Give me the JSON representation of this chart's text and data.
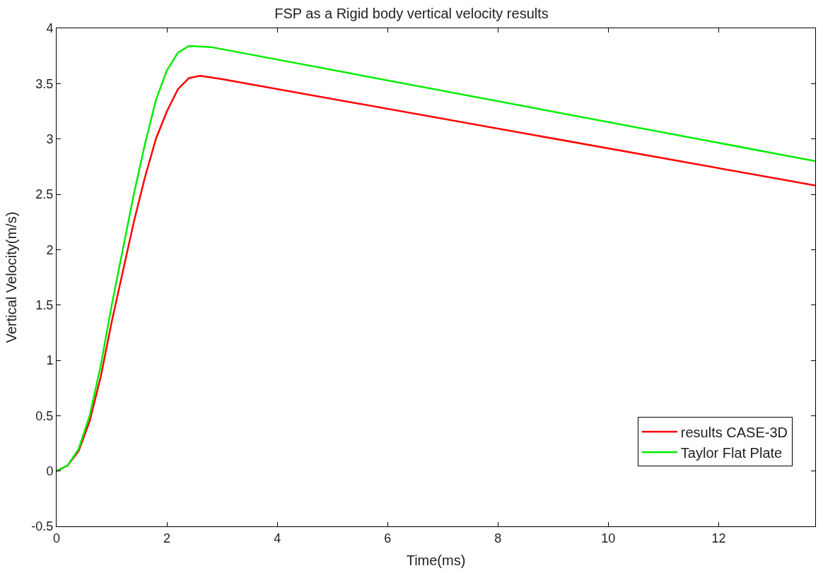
{
  "chart_data": {
    "type": "line",
    "title": "FSP as a Rigid body vertical velocity results",
    "xlabel": "Time(ms)",
    "ylabel": "Vertical Velocity(m/s)",
    "xlim": [
      0,
      13.75
    ],
    "xticks": [
      0,
      2,
      4,
      6,
      8,
      10,
      12
    ],
    "ylim": [
      -0.5,
      4
    ],
    "yticks": [
      -0.5,
      0,
      0.5,
      1,
      1.5,
      2,
      2.5,
      3,
      3.5,
      4
    ],
    "legend": "bottom right",
    "marker": "none",
    "line_style": "solid",
    "series": [
      {
        "name": "results CASE-3D",
        "color": "#ff0000",
        "x": [
          0,
          0.2,
          0.4,
          0.6,
          0.8,
          1.0,
          1.2,
          1.4,
          1.6,
          1.8,
          2.0,
          2.2,
          2.4,
          2.6,
          3.0,
          13.75
        ],
        "values": [
          0,
          0.05,
          0.18,
          0.45,
          0.85,
          1.35,
          1.8,
          2.25,
          2.65,
          3.0,
          3.25,
          3.45,
          3.55,
          3.57,
          3.54,
          2.58
        ]
      },
      {
        "name": "Taylor Flat Plate",
        "color": "#00ee00",
        "x": [
          0,
          0.2,
          0.4,
          0.6,
          0.8,
          1.0,
          1.2,
          1.4,
          1.6,
          1.8,
          2.0,
          2.2,
          2.4,
          2.8,
          13.75
        ],
        "values": [
          0,
          0.05,
          0.2,
          0.5,
          0.95,
          1.5,
          2.0,
          2.5,
          2.95,
          3.35,
          3.62,
          3.78,
          3.84,
          3.83,
          2.8
        ]
      }
    ]
  }
}
